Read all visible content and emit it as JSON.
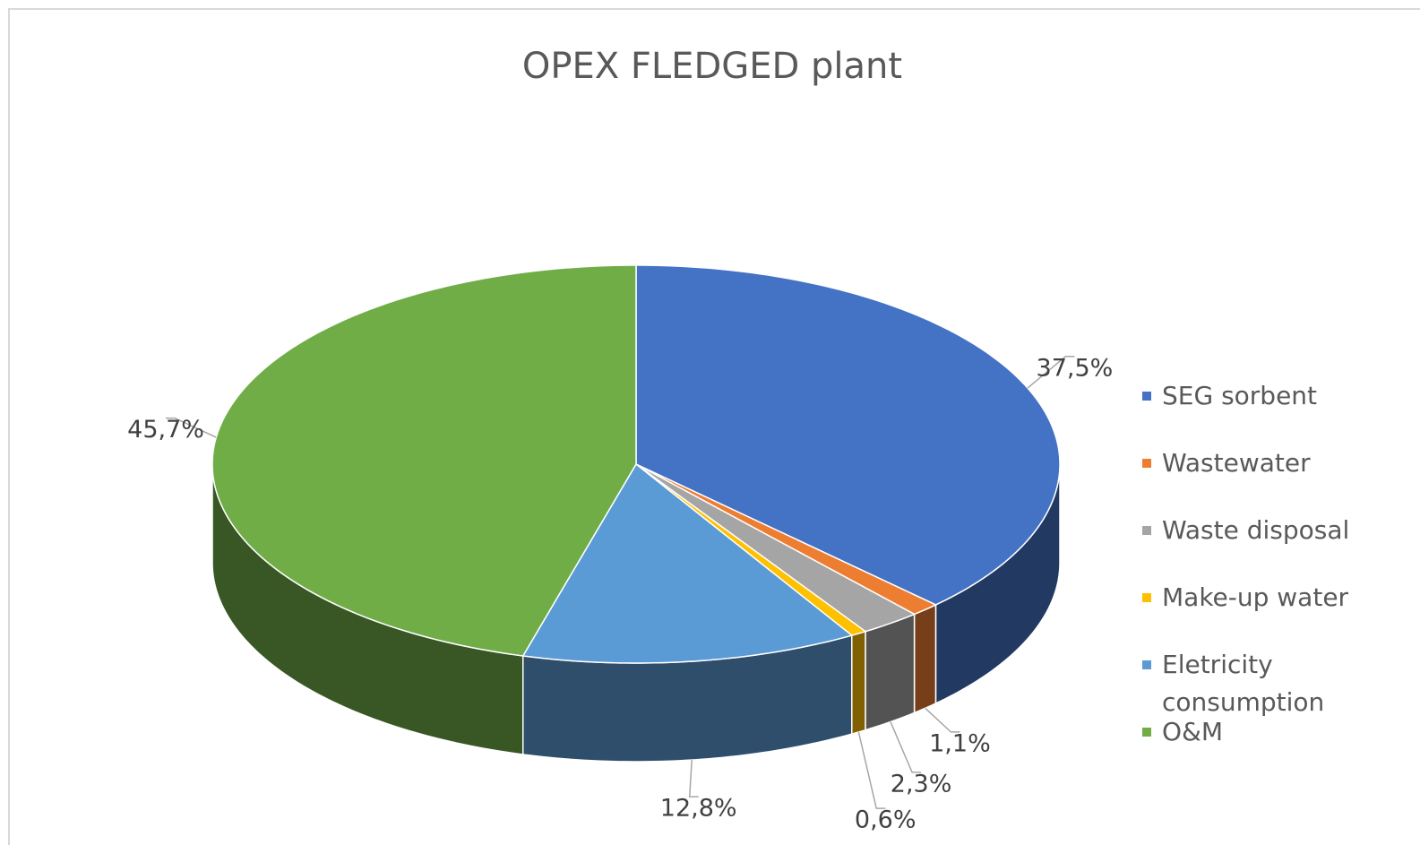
{
  "chart_data": {
    "type": "pie",
    "title": "OPEX FLEDGED plant",
    "categories": [
      "SEG sorbent",
      "Wastewater",
      "Waste disposal",
      "Make-up water",
      "Eletricity consumption",
      "O&M"
    ],
    "values": [
      37.5,
      1.1,
      2.3,
      0.6,
      12.8,
      45.7
    ],
    "value_labels": [
      "37,5%",
      "1,1%",
      "2,3%",
      "0,6%",
      "12,8%",
      "45,7%"
    ],
    "colors": [
      "#4472c4",
      "#ed7d31",
      "#a5a5a5",
      "#ffc000",
      "#5b9bd5",
      "#70ad47"
    ],
    "legend": "right"
  }
}
